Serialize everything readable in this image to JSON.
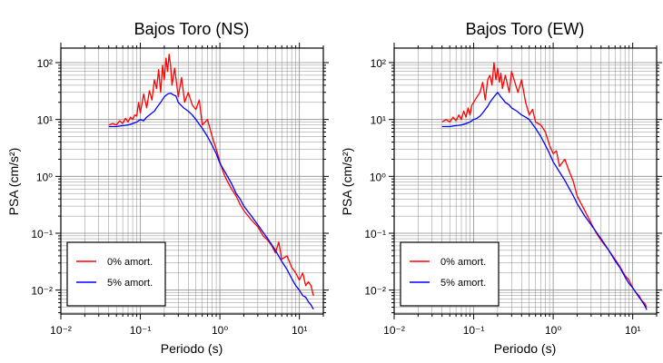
{
  "figure": {
    "charts": [
      {
        "title": "Bajos Toro (NS)"
      },
      {
        "title": "Bajos Toro (EW)"
      }
    ]
  },
  "colors": {
    "undamped": "#ff0000",
    "damped": "#0000ff",
    "grid": "#8c8c8c",
    "frame": "#000000"
  },
  "chart_data": [
    {
      "type": "line",
      "title": "Bajos Toro (NS)",
      "xlabel": "Periodo (s)",
      "ylabel": "PSA (cm/s²)",
      "xscale": "log",
      "yscale": "log",
      "xlim": [
        0.01,
        20
      ],
      "ylim": [
        0.0038,
        180
      ],
      "x_ticks": [
        "10⁻²",
        "10⁻¹",
        "10⁰",
        "10¹"
      ],
      "y_ticks": [
        "10⁻²",
        "10⁻¹",
        "10⁰",
        "10¹",
        "10²"
      ],
      "grid": true,
      "legend_position": "bottom-left",
      "series": [
        {
          "name": "0% amort.",
          "color": "#ff0000",
          "x": [
            0.04,
            0.045,
            0.05,
            0.055,
            0.06,
            0.065,
            0.07,
            0.075,
            0.08,
            0.085,
            0.09,
            0.095,
            0.1,
            0.11,
            0.12,
            0.13,
            0.14,
            0.15,
            0.16,
            0.17,
            0.18,
            0.19,
            0.2,
            0.21,
            0.22,
            0.23,
            0.24,
            0.25,
            0.27,
            0.3,
            0.33,
            0.36,
            0.4,
            0.45,
            0.5,
            0.55,
            0.6,
            0.7,
            0.8,
            0.9,
            1.0,
            1.1,
            1.2,
            1.4,
            1.6,
            1.8,
            2.0,
            2.5,
            3.0,
            3.5,
            4.0,
            4.5,
            5.0,
            5.5,
            6.0,
            7.0,
            8.0,
            9.0,
            10.0,
            11.0,
            12.0,
            13.0,
            14.0,
            15.0
          ],
          "y": [
            8.0,
            8.5,
            8.0,
            9.5,
            8.5,
            10.5,
            9.0,
            11.0,
            10.0,
            12.0,
            11.5,
            20.0,
            13.0,
            28.0,
            16.0,
            32.0,
            22.0,
            50.0,
            35.0,
            75.0,
            30.0,
            90.0,
            50.0,
            120.0,
            70.0,
            140.0,
            90.0,
            40.0,
            80.0,
            25.0,
            55.0,
            20.0,
            30.0,
            18.0,
            15.0,
            22.0,
            8.0,
            10.0,
            5.0,
            3.0,
            1.8,
            1.2,
            0.9,
            0.6,
            0.45,
            0.32,
            0.25,
            0.17,
            0.13,
            0.09,
            0.075,
            0.06,
            0.045,
            0.07,
            0.035,
            0.04,
            0.025,
            0.02,
            0.015,
            0.02,
            0.012,
            0.014,
            0.012,
            0.008
          ]
        },
        {
          "name": "5% amort.",
          "color": "#0000ff",
          "x": [
            0.04,
            0.05,
            0.06,
            0.07,
            0.08,
            0.09,
            0.1,
            0.11,
            0.12,
            0.13,
            0.14,
            0.15,
            0.16,
            0.18,
            0.2,
            0.22,
            0.24,
            0.26,
            0.28,
            0.3,
            0.35,
            0.4,
            0.45,
            0.5,
            0.6,
            0.7,
            0.8,
            0.9,
            1.0,
            1.2,
            1.4,
            1.6,
            1.8,
            2.0,
            2.5,
            3.0,
            4.0,
            5.0,
            6.0,
            7.0,
            8.0,
            9.0,
            10.0,
            11.0,
            12.0,
            13.0,
            14.0,
            15.0
          ],
          "y": [
            7.5,
            7.5,
            7.8,
            8.0,
            8.5,
            9.0,
            10.0,
            9.5,
            11.0,
            12.0,
            13.0,
            14.0,
            16.0,
            20.0,
            25.0,
            28.0,
            29.0,
            27.0,
            26.0,
            20.0,
            16.0,
            14.0,
            12.0,
            10.0,
            7.0,
            5.0,
            3.5,
            2.5,
            1.7,
            1.1,
            0.75,
            0.5,
            0.4,
            0.3,
            0.2,
            0.14,
            0.08,
            0.05,
            0.032,
            0.023,
            0.016,
            0.012,
            0.01,
            0.008,
            0.0075,
            0.0062,
            0.0055,
            0.0046
          ]
        }
      ]
    },
    {
      "type": "line",
      "title": "Bajos Toro (EW)",
      "xlabel": "Periodo (s)",
      "ylabel": "PSA (cm/s²)",
      "xscale": "log",
      "yscale": "log",
      "xlim": [
        0.01,
        20
      ],
      "ylim": [
        0.0038,
        180
      ],
      "x_ticks": [
        "10⁻²",
        "10⁻¹",
        "10⁰",
        "10¹"
      ],
      "y_ticks": [
        "10⁻²",
        "10⁻¹",
        "10⁰",
        "10¹",
        "10²"
      ],
      "grid": true,
      "legend_position": "bottom-left",
      "series": [
        {
          "name": "0% amort.",
          "color": "#ff0000",
          "x": [
            0.04,
            0.045,
            0.05,
            0.055,
            0.06,
            0.065,
            0.07,
            0.075,
            0.08,
            0.085,
            0.09,
            0.095,
            0.1,
            0.11,
            0.12,
            0.13,
            0.14,
            0.15,
            0.16,
            0.17,
            0.18,
            0.19,
            0.2,
            0.21,
            0.22,
            0.23,
            0.25,
            0.28,
            0.3,
            0.33,
            0.36,
            0.4,
            0.45,
            0.5,
            0.55,
            0.6,
            0.7,
            0.8,
            0.9,
            1.0,
            1.1,
            1.2,
            1.4,
            1.6,
            1.8,
            2.0,
            2.5,
            3.0,
            3.5,
            4.0,
            5.0,
            6.0,
            7.0,
            8.0,
            9.0,
            10.0,
            11.0,
            12.0,
            13.0,
            14.0,
            15.0
          ],
          "y": [
            9.0,
            10.0,
            9.0,
            11.0,
            9.5,
            12.0,
            10.0,
            14.0,
            11.0,
            16.0,
            12.0,
            18.0,
            20.0,
            25.0,
            30.0,
            45.0,
            22.0,
            50.0,
            60.0,
            40.0,
            100.0,
            50.0,
            80.0,
            45.0,
            65.0,
            35.0,
            60.0,
            30.0,
            70.0,
            45.0,
            30.0,
            50.0,
            20.0,
            12.0,
            15.0,
            9.0,
            8.0,
            6.0,
            3.5,
            2.5,
            2.8,
            1.5,
            2.0,
            1.2,
            0.8,
            0.45,
            0.25,
            0.15,
            0.1,
            0.075,
            0.05,
            0.035,
            0.025,
            0.018,
            0.015,
            0.011,
            0.009,
            0.008,
            0.0065,
            0.006,
            0.005
          ]
        },
        {
          "name": "5% amort.",
          "color": "#0000ff",
          "x": [
            0.04,
            0.05,
            0.06,
            0.07,
            0.08,
            0.09,
            0.1,
            0.11,
            0.12,
            0.13,
            0.14,
            0.15,
            0.16,
            0.18,
            0.2,
            0.22,
            0.25,
            0.28,
            0.3,
            0.35,
            0.4,
            0.45,
            0.5,
            0.6,
            0.7,
            0.8,
            0.9,
            1.0,
            1.2,
            1.4,
            1.6,
            1.8,
            2.0,
            2.5,
            3.0,
            4.0,
            5.0,
            6.0,
            7.0,
            8.0,
            9.0,
            10.0,
            11.0,
            12.0,
            13.0,
            14.0,
            15.0
          ],
          "y": [
            7.5,
            7.5,
            7.8,
            8.0,
            8.5,
            9.0,
            10.0,
            10.5,
            11.5,
            13.0,
            15.0,
            17.0,
            20.0,
            25.0,
            30.0,
            25.0,
            20.0,
            18.0,
            16.0,
            14.0,
            12.0,
            11.0,
            10.0,
            7.0,
            5.0,
            3.5,
            2.5,
            1.8,
            1.2,
            0.85,
            0.6,
            0.45,
            0.33,
            0.2,
            0.14,
            0.08,
            0.05,
            0.033,
            0.024,
            0.017,
            0.013,
            0.011,
            0.009,
            0.0075,
            0.0065,
            0.0055,
            0.0045
          ]
        }
      ]
    }
  ]
}
